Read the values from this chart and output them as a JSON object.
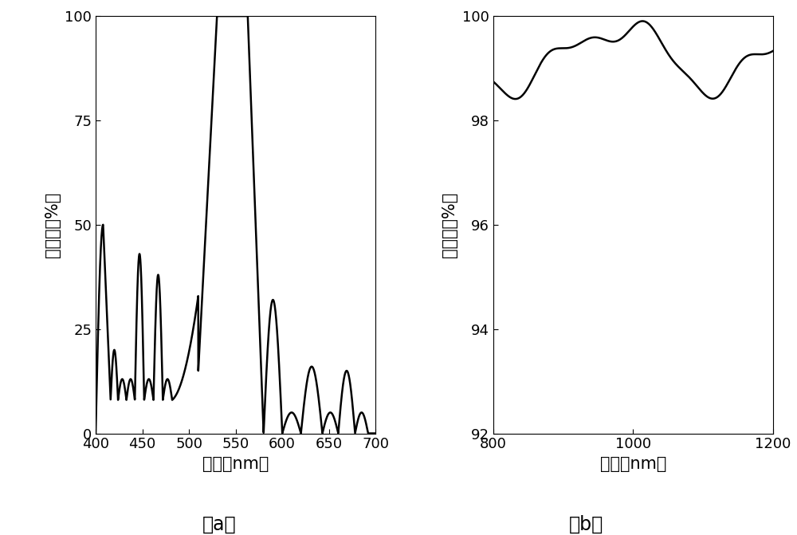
{
  "fig_width": 10.0,
  "fig_height": 6.71,
  "dpi": 100,
  "background_color": "#ffffff",
  "line_color": "#000000",
  "line_width": 1.8,
  "plot_a": {
    "xlabel": "波长（nm）",
    "ylabel": "反射率（%）",
    "xlim": [
      400,
      700
    ],
    "ylim": [
      0,
      100
    ],
    "xticks": [
      400,
      450,
      500,
      550,
      600,
      650,
      700
    ],
    "yticks": [
      0,
      25,
      50,
      75,
      100
    ],
    "label": "（a）"
  },
  "plot_b": {
    "xlabel": "波长（nm）",
    "ylabel": "透射率（%）",
    "xlim": [
      800,
      1200
    ],
    "ylim": [
      92,
      100
    ],
    "xticks": [
      800,
      1000,
      1200
    ],
    "yticks": [
      92,
      94,
      96,
      98,
      100
    ],
    "label": "（b）"
  }
}
